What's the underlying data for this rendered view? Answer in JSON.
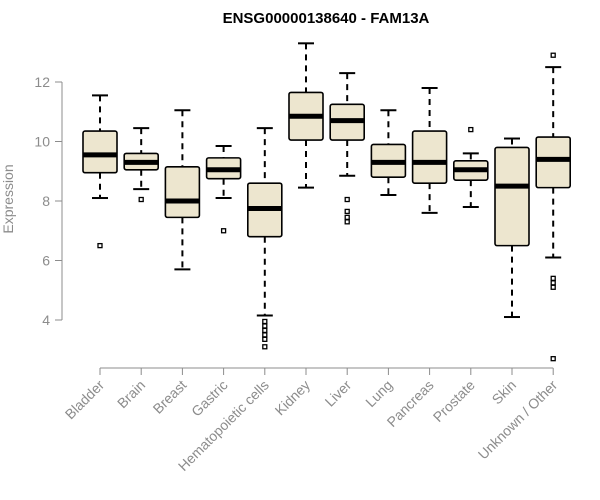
{
  "chart_data": {
    "type": "boxplot",
    "title": "ENSG00000138640 - FAM13A",
    "ylabel": "Expression",
    "xlabel": "",
    "ylim": [
      2.5,
      13.5
    ],
    "yticks": [
      4,
      6,
      8,
      10,
      12
    ],
    "box_color": "#ede6cf",
    "axis_color": "#8c8c8c",
    "categories": [
      "Bladder",
      "Brain",
      "Breast",
      "Gastric",
      "Hematopoietic cells",
      "Kidney",
      "Liver",
      "Lung",
      "Pancreas",
      "Prostate",
      "Skin",
      "Unknown / Other"
    ],
    "boxes": [
      {
        "name": "Bladder",
        "min": 8.1,
        "q1": 8.95,
        "median": 9.55,
        "q3": 10.35,
        "max": 11.55,
        "outliers": [
          6.5
        ]
      },
      {
        "name": "Brain",
        "min": 8.4,
        "q1": 9.05,
        "median": 9.3,
        "q3": 9.6,
        "max": 10.45,
        "outliers": [
          8.05
        ]
      },
      {
        "name": "Breast",
        "min": 5.7,
        "q1": 7.45,
        "median": 8.0,
        "q3": 9.15,
        "max": 11.05,
        "outliers": []
      },
      {
        "name": "Gastric",
        "min": 8.1,
        "q1": 8.75,
        "median": 9.05,
        "q3": 9.45,
        "max": 9.85,
        "outliers": [
          7.0
        ]
      },
      {
        "name": "Hematopoietic cells",
        "min": 4.15,
        "q1": 6.8,
        "median": 7.75,
        "q3": 8.6,
        "max": 10.45,
        "outliers": [
          3.95,
          3.8,
          3.65,
          3.5,
          3.35,
          3.1
        ]
      },
      {
        "name": "Kidney",
        "min": 8.45,
        "q1": 10.05,
        "median": 10.85,
        "q3": 11.65,
        "max": 13.3,
        "outliers": []
      },
      {
        "name": "Liver",
        "min": 8.85,
        "q1": 10.05,
        "median": 10.7,
        "q3": 11.25,
        "max": 12.3,
        "outliers": [
          8.05,
          7.65,
          7.45,
          7.3
        ]
      },
      {
        "name": "Lung",
        "min": 8.2,
        "q1": 8.8,
        "median": 9.3,
        "q3": 9.9,
        "max": 11.05,
        "outliers": []
      },
      {
        "name": "Pancreas",
        "min": 7.6,
        "q1": 8.6,
        "median": 9.3,
        "q3": 10.35,
        "max": 11.8,
        "outliers": []
      },
      {
        "name": "Prostate",
        "min": 7.8,
        "q1": 8.7,
        "median": 9.05,
        "q3": 9.35,
        "max": 9.6,
        "outliers": [
          10.4
        ]
      },
      {
        "name": "Skin",
        "min": 4.1,
        "q1": 6.5,
        "median": 8.5,
        "q3": 9.8,
        "max": 10.1,
        "outliers": []
      },
      {
        "name": "Unknown / Other",
        "min": 6.1,
        "q1": 8.45,
        "median": 9.4,
        "q3": 10.15,
        "max": 12.5,
        "outliers": [
          12.9,
          5.4,
          5.25,
          5.1,
          2.7
        ]
      }
    ]
  }
}
